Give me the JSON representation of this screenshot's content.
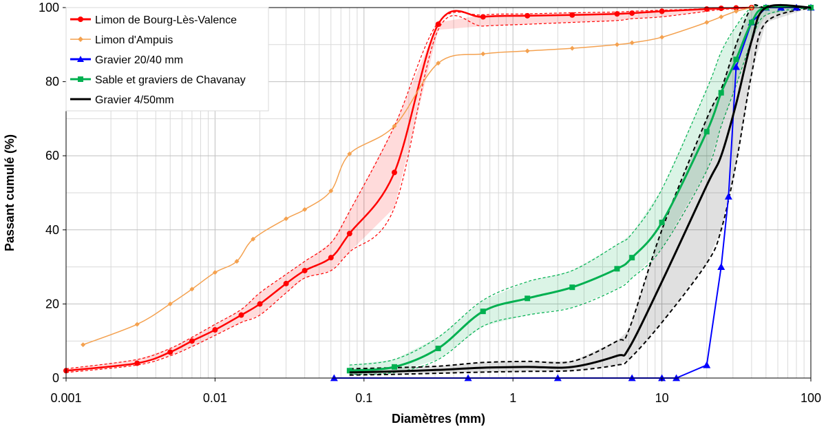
{
  "chart_data": {
    "type": "line",
    "xlabel": "Diamètres (mm)",
    "ylabel": "Passant cumulé (%)",
    "xscale": "log",
    "xlim": [
      0.001,
      100
    ],
    "ylim": [
      0,
      100
    ],
    "xticks": [
      "0.001",
      "0.01",
      "0.1",
      "1",
      "10",
      "100"
    ],
    "yticks": [
      "0",
      "20",
      "40",
      "60",
      "80",
      "100"
    ],
    "grid": true,
    "legend_position": "top-left",
    "series": [
      {
        "name": "Limon de Bourg-Lès-Valence",
        "color": "#ff0000",
        "marker": "circle",
        "x": [
          0.001,
          0.003,
          0.005,
          0.007,
          0.01,
          0.015,
          0.02,
          0.03,
          0.04,
          0.06,
          0.08,
          0.16,
          0.315,
          0.63,
          1.25,
          2.5,
          5,
          6.3,
          10,
          20,
          25,
          31.5,
          40
        ],
        "y": [
          2,
          4,
          7,
          10,
          13,
          17,
          20,
          25.5,
          29,
          32.5,
          39,
          55.5,
          95.5,
          97.5,
          97.8,
          98,
          98.3,
          98.5,
          99,
          99.6,
          99.8,
          99.9,
          100
        ],
        "band_upper": [
          2.5,
          5,
          8,
          11,
          14.5,
          18.5,
          23,
          28,
          31.5,
          36.5,
          45,
          68,
          96,
          98,
          98.3,
          98.6,
          98.8,
          99,
          99.3,
          99.7,
          99.9,
          100,
          100
        ],
        "band_lower": [
          1.5,
          3.5,
          6,
          8.5,
          11.5,
          15,
          17,
          23,
          27,
          29,
          34,
          46,
          94,
          95,
          95.5,
          96,
          96.5,
          97,
          97.5,
          99,
          99.5,
          99.7,
          100
        ]
      },
      {
        "name": "Limon d'Ampuis",
        "color": "#f4a14f",
        "marker": "diamond",
        "x": [
          0.0013,
          0.003,
          0.005,
          0.007,
          0.01,
          0.014,
          0.018,
          0.03,
          0.04,
          0.06,
          0.08,
          0.16,
          0.315,
          0.63,
          1.25,
          2.5,
          5,
          6.3,
          10,
          20,
          25,
          31.5,
          40
        ],
        "y": [
          9,
          14.5,
          20,
          24,
          28.5,
          31.5,
          37.5,
          43,
          45.5,
          50.5,
          60.5,
          68,
          85,
          87.5,
          88.3,
          89,
          90,
          90.5,
          92,
          96,
          97.5,
          99,
          100
        ]
      },
      {
        "name": "Gravier 20/40 mm",
        "color": "#0000ff",
        "marker": "triangle",
        "x": [
          0.063,
          0.5,
          2,
          6.3,
          10,
          12.5,
          20,
          25,
          28,
          31.5,
          40,
          50,
          63,
          80,
          100
        ],
        "y": [
          0,
          0,
          0,
          0,
          0,
          0,
          3.5,
          30,
          49,
          84,
          96,
          100,
          100,
          100,
          100
        ]
      },
      {
        "name": "Sable et graviers de Chavanay",
        "color": "#00b050",
        "marker": "square",
        "x": [
          0.08,
          0.16,
          0.315,
          0.63,
          1.25,
          2.5,
          5,
          6.3,
          10,
          20,
          25,
          31.5,
          40,
          50,
          100
        ],
        "y": [
          2,
          3,
          8,
          18,
          21.5,
          24.5,
          29.5,
          32.5,
          42,
          66.5,
          77,
          86,
          96,
          100,
          100
        ],
        "band_upper": [
          3.5,
          5,
          11,
          21,
          26,
          29,
          36,
          39,
          51,
          78,
          88,
          95,
          100,
          100,
          100
        ],
        "band_lower": [
          1,
          1.5,
          5,
          14,
          17,
          19,
          24,
          27,
          35,
          56,
          68,
          79,
          91,
          98,
          100
        ]
      },
      {
        "name": "Gravier 4/50mm",
        "color": "#000000",
        "marker": "none",
        "x": [
          0.08,
          0.16,
          0.315,
          0.63,
          1.25,
          2.5,
          5,
          6,
          10,
          20,
          25,
          31.5,
          40,
          50,
          100
        ],
        "y": [
          1.5,
          1.8,
          2.2,
          2.8,
          3,
          3,
          6,
          8,
          26,
          52,
          60,
          74,
          91,
          100,
          100
        ],
        "band_upper": [
          2.5,
          2.8,
          3.2,
          4.2,
          4.5,
          4.5,
          10,
          13,
          40,
          70,
          78,
          90,
          100,
          100,
          100
        ],
        "band_lower": [
          0.8,
          1,
          1.3,
          1.6,
          1.8,
          2,
          3.5,
          5,
          15,
          31,
          40,
          58,
          82,
          96,
          100
        ]
      }
    ]
  }
}
